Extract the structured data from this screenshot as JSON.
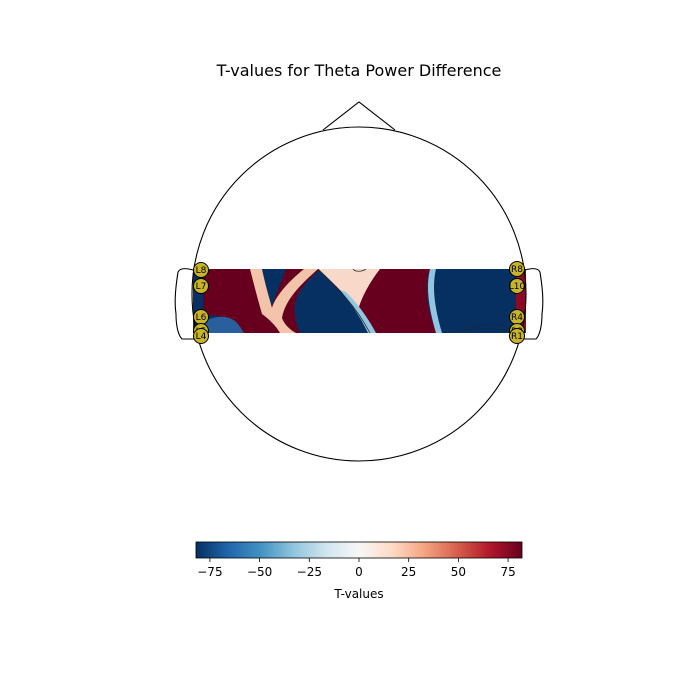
{
  "chart_data": {
    "type": "heatmap",
    "title": "T-values for Theta Power Difference",
    "colorbar": {
      "label": "T-values",
      "range": [
        -82,
        82
      ],
      "ticks": [
        -75,
        -50,
        -25,
        0,
        25,
        50,
        75
      ],
      "tick_labels": [
        "−75",
        "−50",
        "−25",
        "0",
        "25",
        "50",
        "75"
      ],
      "colormap": "RdBu_r"
    },
    "colors": {
      "sensor_fill": "#c8b428",
      "outline": "#000000"
    },
    "sensors": [
      {
        "name": "L8",
        "side": "left"
      },
      {
        "name": "L7",
        "side": "left"
      },
      {
        "name": "L6",
        "side": "left"
      },
      {
        "name": "L5",
        "side": "left"
      },
      {
        "name": "L4",
        "side": "left"
      },
      {
        "name": "R8",
        "side": "right"
      },
      {
        "name": "L10",
        "side": "right"
      },
      {
        "name": "R4",
        "side": "right"
      },
      {
        "name": "R2",
        "side": "right"
      },
      {
        "name": "R1",
        "side": "right"
      }
    ]
  }
}
